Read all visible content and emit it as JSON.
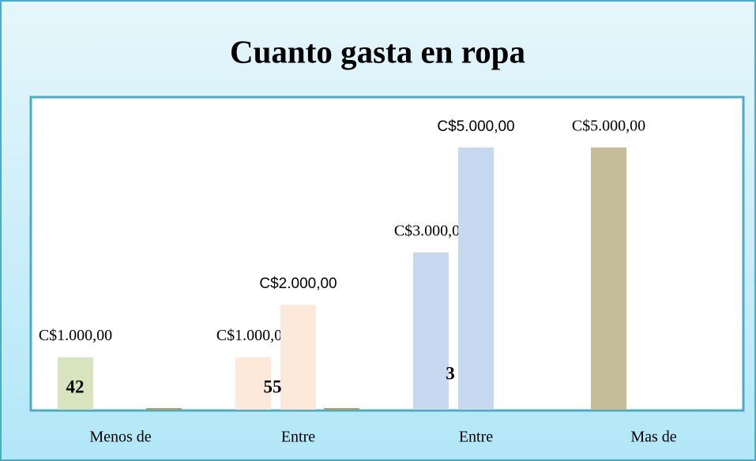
{
  "chart_data": {
    "type": "bar",
    "title": "Cuanto gasta en ropa",
    "categories": [
      "Menos de",
      "Entre",
      "Entre",
      "Mas de"
    ],
    "series": [
      {
        "values": [
          1000,
          1000,
          3000,
          5000
        ],
        "value_labels": [
          "C$1.000,00",
          "C$1.000,00",
          "C$3.000,00",
          "C$5.000,00"
        ],
        "colors": [
          "#d7e4bd",
          "#fde9d9",
          "#c6d9f1",
          "#c4bd97"
        ]
      },
      {
        "values": [
          null,
          2000,
          5000,
          null
        ],
        "value_labels": [
          null,
          "C$2.000,00",
          "C$5.000,00",
          null
        ],
        "colors": [
          null,
          "#fde9d9",
          "#c6d9f1",
          null
        ]
      },
      {
        "values": [
          30,
          30,
          null,
          null
        ],
        "colors": [
          "#a5a55a",
          "#a5a55a",
          null,
          null
        ]
      }
    ],
    "counts": [
      42,
      55,
      3,
      null
    ],
    "ylim": [
      0,
      5930
    ]
  }
}
